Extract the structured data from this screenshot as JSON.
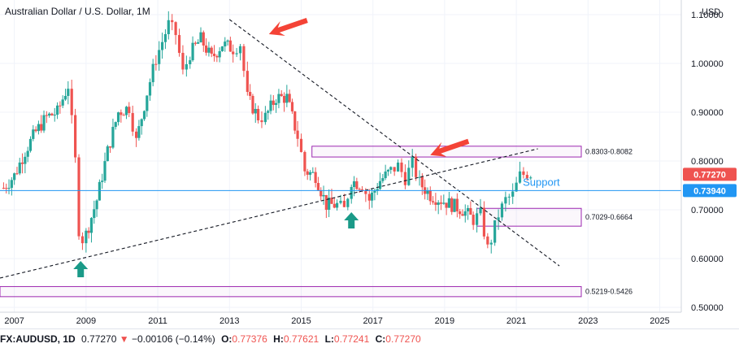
{
  "title": "Australian Dollar / U.S. Dollar, 1M",
  "currency": "USD",
  "chart_data": {
    "type": "candlestick",
    "title": "Australian Dollar / U.S. Dollar, 1M",
    "interval": "1M",
    "x_tick_labels": [
      "2007",
      "2009",
      "2011",
      "2013",
      "2015",
      "2017",
      "2019",
      "2021",
      "2023",
      "2025"
    ],
    "y_tick_labels": [
      "1.10000",
      "1.00000",
      "0.90000",
      "0.80000",
      "0.70000",
      "0.60000",
      "0.50000"
    ],
    "xlim": [
      2006.6,
      2025.6
    ],
    "ylim": [
      0.49,
      1.13
    ],
    "grid": true,
    "price_scale_side": "right",
    "up_color": "#26a69a",
    "down_color": "#ef5350",
    "close_series": [
      {
        "t": 2006.7,
        "c": 0.745
      },
      {
        "t": 2007.0,
        "c": 0.77
      },
      {
        "t": 2007.3,
        "c": 0.82
      },
      {
        "t": 2007.6,
        "c": 0.86
      },
      {
        "t": 2007.9,
        "c": 0.89
      },
      {
        "t": 2008.2,
        "c": 0.9
      },
      {
        "t": 2008.5,
        "c": 0.955
      },
      {
        "t": 2008.6,
        "c": 0.88
      },
      {
        "t": 2008.7,
        "c": 0.8
      },
      {
        "t": 2008.8,
        "c": 0.66
      },
      {
        "t": 2008.9,
        "c": 0.64
      },
      {
        "t": 2009.0,
        "c": 0.65
      },
      {
        "t": 2009.3,
        "c": 0.72
      },
      {
        "t": 2009.6,
        "c": 0.82
      },
      {
        "t": 2009.9,
        "c": 0.9
      },
      {
        "t": 2010.2,
        "c": 0.91
      },
      {
        "t": 2010.4,
        "c": 0.84
      },
      {
        "t": 2010.7,
        "c": 0.94
      },
      {
        "t": 2010.95,
        "c": 1.01
      },
      {
        "t": 2011.3,
        "c": 1.08
      },
      {
        "t": 2011.5,
        "c": 1.06
      },
      {
        "t": 2011.7,
        "c": 0.98
      },
      {
        "t": 2011.9,
        "c": 1.02
      },
      {
        "t": 2012.2,
        "c": 1.05
      },
      {
        "t": 2012.5,
        "c": 1.01
      },
      {
        "t": 2012.8,
        "c": 1.04
      },
      {
        "t": 2013.1,
        "c": 1.03
      },
      {
        "t": 2013.3,
        "c": 1.04
      },
      {
        "t": 2013.5,
        "c": 0.93
      },
      {
        "t": 2013.8,
        "c": 0.89
      },
      {
        "t": 2014.0,
        "c": 0.89
      },
      {
        "t": 2014.3,
        "c": 0.93
      },
      {
        "t": 2014.6,
        "c": 0.93
      },
      {
        "t": 2014.9,
        "c": 0.85
      },
      {
        "t": 2015.1,
        "c": 0.78
      },
      {
        "t": 2015.4,
        "c": 0.77
      },
      {
        "t": 2015.7,
        "c": 0.71
      },
      {
        "t": 2016.0,
        "c": 0.71
      },
      {
        "t": 2016.2,
        "c": 0.7
      },
      {
        "t": 2016.4,
        "c": 0.76
      },
      {
        "t": 2016.7,
        "c": 0.75
      },
      {
        "t": 2016.9,
        "c": 0.72
      },
      {
        "t": 2017.2,
        "c": 0.76
      },
      {
        "t": 2017.5,
        "c": 0.78
      },
      {
        "t": 2017.7,
        "c": 0.79
      },
      {
        "t": 2017.9,
        "c": 0.765
      },
      {
        "t": 2018.1,
        "c": 0.795
      },
      {
        "t": 2018.3,
        "c": 0.755
      },
      {
        "t": 2018.6,
        "c": 0.73
      },
      {
        "t": 2018.9,
        "c": 0.72
      },
      {
        "t": 2019.2,
        "c": 0.71
      },
      {
        "t": 2019.5,
        "c": 0.7
      },
      {
        "t": 2019.8,
        "c": 0.68
      },
      {
        "t": 2020.0,
        "c": 0.69
      },
      {
        "t": 2020.2,
        "c": 0.62
      },
      {
        "t": 2020.3,
        "c": 0.64
      },
      {
        "t": 2020.5,
        "c": 0.69
      },
      {
        "t": 2020.7,
        "c": 0.72
      },
      {
        "t": 2020.9,
        "c": 0.73
      },
      {
        "t": 2021.1,
        "c": 0.77
      },
      {
        "t": 2021.3,
        "c": 0.775
      },
      {
        "t": 2021.5,
        "c": 0.773
      }
    ],
    "zones": [
      {
        "label": "0.8303-0.8082",
        "top": 0.8303,
        "bottom": 0.8082,
        "start": 2015.3,
        "color": "#9c27b0"
      },
      {
        "label": "0.7029-0.6664",
        "top": 0.7029,
        "bottom": 0.6664,
        "start": 2019.9,
        "color": "#9c27b0"
      },
      {
        "label": "0.5219-0.5426",
        "top": 0.5426,
        "bottom": 0.5219,
        "start": 2006.6,
        "color": "#9c27b0"
      }
    ],
    "trend_lines": [
      {
        "name": "downtrend",
        "from": [
          2013.0,
          1.09
        ],
        "to": [
          2022.2,
          0.585
        ],
        "style": "dashed"
      },
      {
        "name": "uptrend",
        "from": [
          2006.6,
          0.56
        ],
        "to": [
          2021.6,
          0.825
        ],
        "style": "dashed"
      }
    ],
    "support": {
      "label": "Support",
      "value": 0.7394,
      "tag": "0.73940",
      "color": "#2196f3"
    },
    "last_price": {
      "value": 0.7727,
      "tag": "0.77270",
      "color": "#ef5350"
    },
    "arrows": [
      {
        "direction": "down",
        "t": 2014.1,
        "y": 1.06,
        "color": "#f44336"
      },
      {
        "direction": "down",
        "t": 2018.6,
        "y": 0.812,
        "color": "#f44336"
      },
      {
        "direction": "up",
        "t": 2008.85,
        "y": 0.595,
        "color": "#1a9a88"
      },
      {
        "direction": "up",
        "t": 2016.4,
        "y": 0.695,
        "color": "#1a9a88"
      }
    ]
  },
  "ohlc_bar": {
    "symbol": "FX:AUDUSD, 1D",
    "price": "0.77270",
    "change": "−0.00106 (−0.14%)",
    "o_label": "O:",
    "o": "0.77376",
    "h_label": "H:",
    "h": "0.77621",
    "l_label": "L:",
    "l": "0.77241",
    "c_label": "C:",
    "c": "0.77270"
  }
}
